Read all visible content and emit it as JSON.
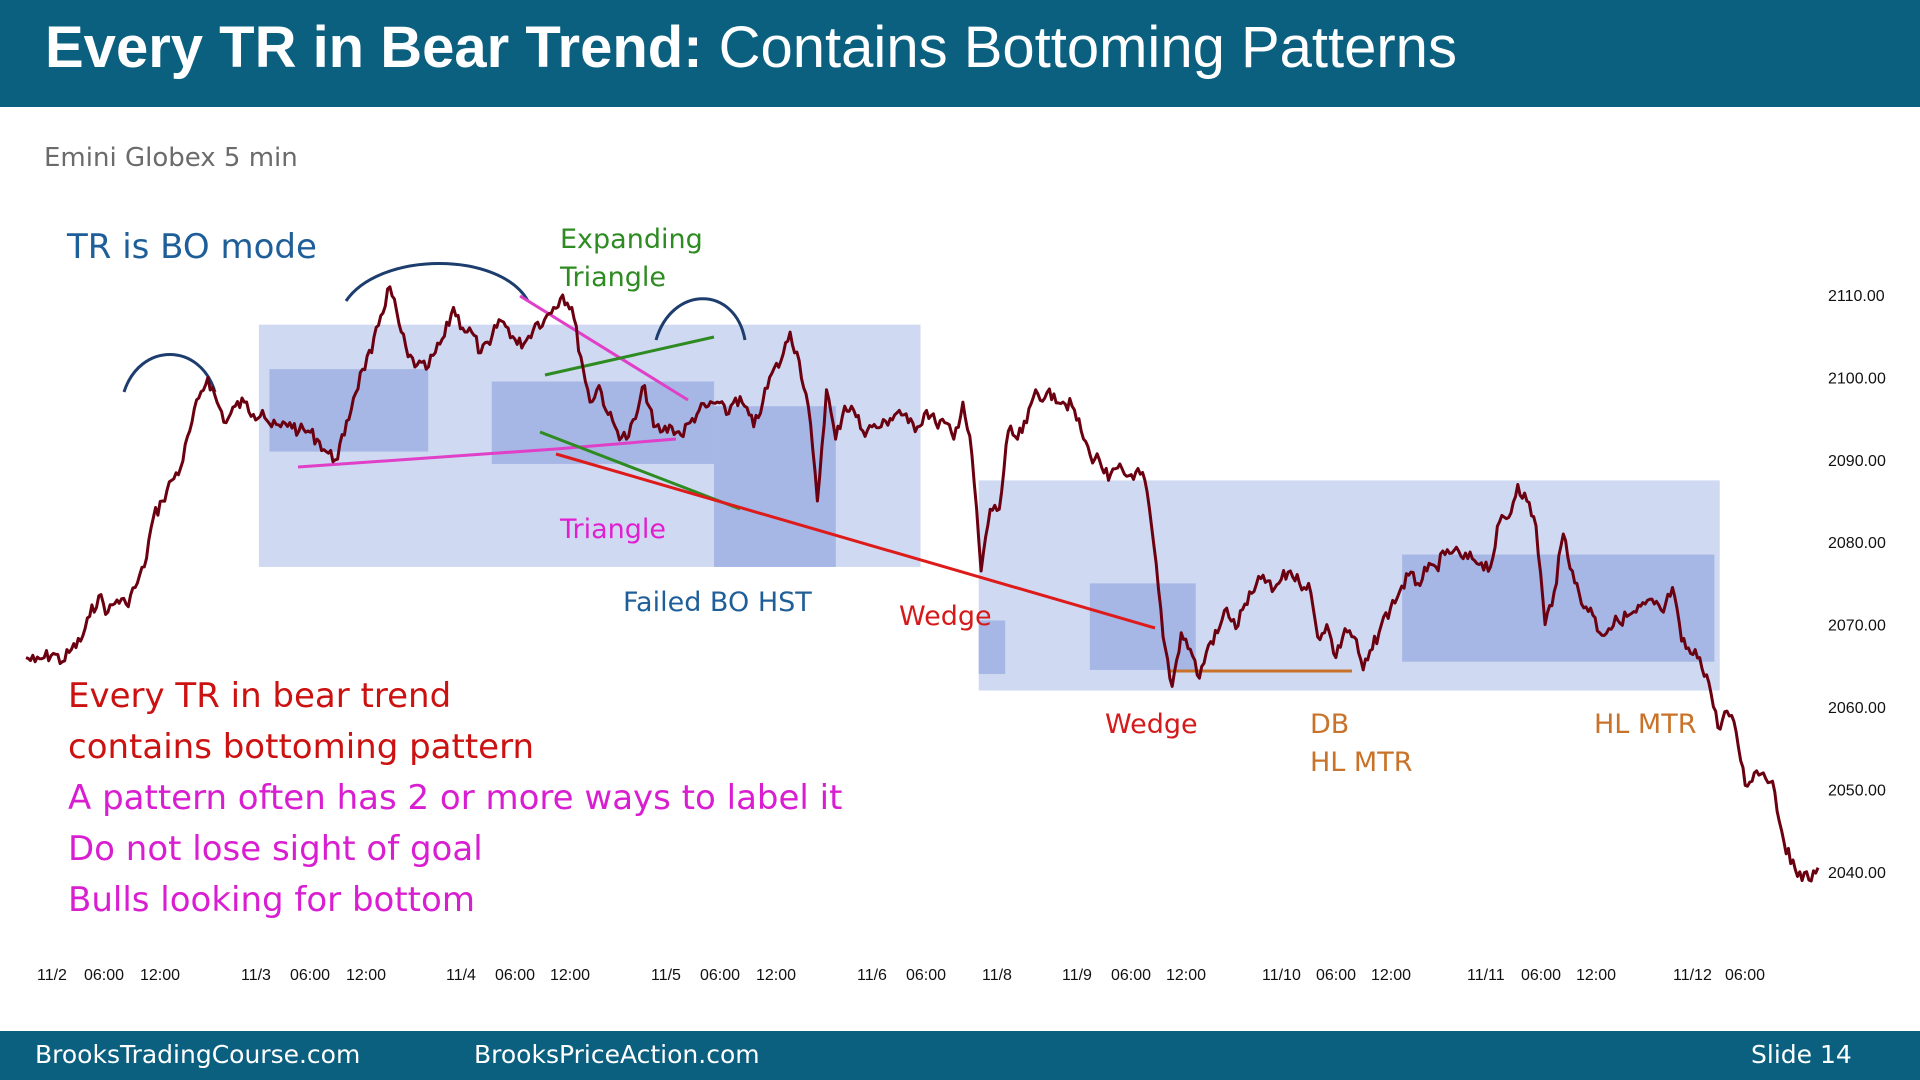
{
  "header": {
    "title_bold": "Every TR in Bear Trend:",
    "title_rest": " Contains Bottoming Patterns"
  },
  "subtitle": "Emini Globex 5 min",
  "annotations": {
    "tr_bo_mode": "TR is BO mode",
    "expanding_triangle_1": "Expanding",
    "expanding_triangle_2": "Triangle",
    "triangle": "Triangle",
    "failed_bo_hst": "Failed BO HST",
    "wedge_1": "Wedge",
    "wedge_2": "Wedge",
    "db": "DB",
    "hl_mtr_1": "HL MTR",
    "hl_mtr_2": "HL MTR"
  },
  "notes": [
    "Every TR in bear trend",
    "contains bottoming pattern",
    "A pattern often has 2 or more ways to label it",
    "Do not lose sight of goal",
    "Bulls looking for bottom"
  ],
  "footer": {
    "left": "BrooksTradingCourse.com",
    "center": "BrooksPriceAction.com",
    "slide": "Slide  14"
  },
  "colors": {
    "header_bg": "#0b6080",
    "price_line": "#6b0010",
    "box_light": "#c7d2ef",
    "box_dark": "#98a9e0",
    "annot_blue": "#1f5f99",
    "annot_green": "#2e8b22",
    "annot_magenta": "#e020d0",
    "annot_red": "#d41a1a",
    "annot_orange": "#c8722a",
    "arc_navy": "#1c3d6e"
  },
  "chart_data": {
    "type": "line",
    "title": "",
    "xlabel": "",
    "ylabel": "",
    "ylim": [
      2037,
      2113
    ],
    "yticks": [
      "2110.00",
      "2100.00",
      "2090.00",
      "2080.00",
      "2070.00",
      "2060.00",
      "2050.00",
      "2040.00"
    ],
    "xtick_labels": [
      "11/2",
      "06:00",
      "12:00",
      "11/3",
      "06:00",
      "12:00",
      "11/4",
      "06:00",
      "12:00",
      "11/5",
      "06:00",
      "12:00",
      "11/6",
      "06:00",
      "11/8",
      "11/9",
      "06:00",
      "12:00",
      "11/10",
      "06:00",
      "12:00",
      "11/11",
      "06:00",
      "12:00",
      "11/12",
      "06:00"
    ],
    "series": [
      {
        "values": [
          2066,
          2065.5,
          2066,
          2066.5,
          2065.5,
          2067,
          2068,
          2071,
          2073.5,
          2071.5,
          2073,
          2072.5,
          2074.5,
          2077,
          2083,
          2085,
          2087.5,
          2089,
          2093.5,
          2097.5,
          2100,
          2097,
          2094.5,
          2096.5,
          2097,
          2095.5,
          2096,
          2094,
          2094,
          2094.5,
          2093.5,
          2093.5,
          2092.5,
          2091,
          2090,
          2093,
          2097.5,
          2101,
          2103,
          2107.5,
          2111,
          2106.5,
          2102.5,
          2101.5,
          2101,
          2103,
          2105,
          2108.5,
          2106,
          2105.5,
          2103,
          2104,
          2107,
          2106,
          2104,
          2104.5,
          2106.5,
          2107,
          2108.5,
          2110,
          2108.5,
          2102.5,
          2097,
          2099,
          2095.5,
          2093.5,
          2092.5,
          2095,
          2099,
          2094,
          2093.5,
          2094,
          2093,
          2094.5,
          2096,
          2096.5,
          2097,
          2095.5,
          2097.5,
          2096.5,
          2094,
          2097,
          2100.5,
          2102,
          2105.5,
          2102,
          2096.5,
          2085,
          2098.5,
          2092.5,
          2096.5,
          2096,
          2093.5,
          2094,
          2094,
          2095,
          2096,
          2094.5,
          2094,
          2096,
          2094.5,
          2094.5,
          2092.5,
          2097,
          2090.5,
          2076.5,
          2084,
          2084,
          2093.5,
          2092.5,
          2094.5,
          2098.5,
          2097.5,
          2098,
          2097,
          2096.5,
          2093.5,
          2090.5,
          2090,
          2087.5,
          2089,
          2088,
          2088.5,
          2087.5,
          2079.5,
          2068.5,
          2062.5,
          2069,
          2067,
          2063.5,
          2067.5,
          2069,
          2072,
          2069.5,
          2072.5,
          2074,
          2076,
          2074,
          2075.5,
          2076.5,
          2075,
          2075,
          2068.5,
          2070,
          2066,
          2069.5,
          2068.5,
          2064.5,
          2067,
          2070,
          2072,
          2074,
          2076,
          2075,
          2076.5,
          2077,
          2078.5,
          2079,
          2078,
          2078,
          2077.5,
          2077,
          2082.5,
          2083,
          2087,
          2085,
          2082,
          2070,
          2074,
          2081,
          2076.5,
          2072.5,
          2072,
          2069,
          2069.5,
          2070.5,
          2071,
          2071.5,
          2072.5,
          2072.5,
          2071.5,
          2074.5,
          2068,
          2066.5,
          2066,
          2063,
          2057.5,
          2059.5,
          2057,
          2050.5,
          2052,
          2052,
          2051,
          2045,
          2041,
          2040,
          2039,
          2040.5
        ]
      }
    ],
    "regions": [
      {
        "x0": 2.2,
        "x1": 8.45,
        "y0": 2077.0,
        "y1": 2106.4
      },
      {
        "x0": 2.3,
        "x1": 3.8,
        "y0": 2091.0,
        "y1": 2101.0
      },
      {
        "x0": 4.4,
        "x1": 6.5,
        "y0": 2089.5,
        "y1": 2099.5
      },
      {
        "x0": 6.5,
        "x1": 7.65,
        "y0": 2077.0,
        "y1": 2096.5
      },
      {
        "x0": 9.0,
        "x1": 16.0,
        "y0": 2062.0,
        "y1": 2087.5
      },
      {
        "x0": 9.0,
        "x1": 9.25,
        "y0": 2064.0,
        "y1": 2070.5
      },
      {
        "x0": 10.05,
        "x1": 11.05,
        "y0": 2064.5,
        "y1": 2075.0
      },
      {
        "x0": 13.0,
        "x1": 15.95,
        "y0": 2065.5,
        "y1": 2078.5
      }
    ]
  }
}
